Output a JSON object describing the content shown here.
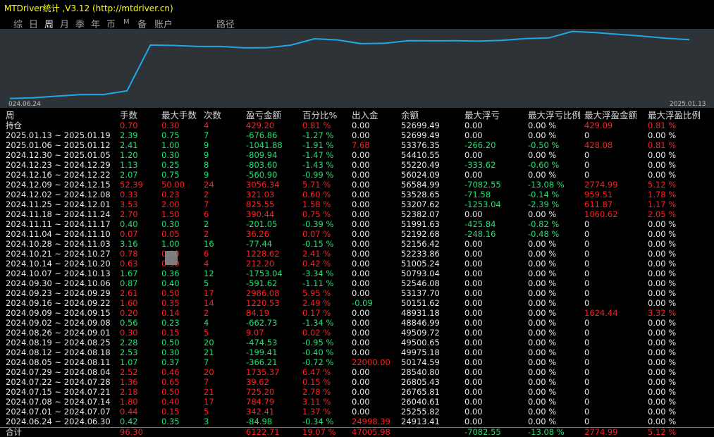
{
  "title": "MTDriver统计 ,V3.12 (http://mtdriver.cn)",
  "tabs": [
    "综",
    "日",
    "周",
    "月",
    "季",
    "年",
    "币",
    "M",
    "备",
    "账户",
    "路径"
  ],
  "active_tab": "周",
  "chart": {
    "x_start_label": "024.06.24",
    "x_end_label": "2025.01.13",
    "line_color": "#1fa8e8",
    "series": [
      24913.41,
      25255.82,
      26040.61,
      26765.81,
      26805.43,
      28540.8,
      50174.59,
      49975.18,
      49500.65,
      49509.72,
      48846.99,
      48931.18,
      50151.62,
      53137.7,
      52546.08,
      50793.04,
      51005.24,
      52233.86,
      52156.42,
      52192.68,
      51991.63,
      52382.07,
      53207.62,
      53528.65,
      56584.99,
      56024.09,
      55220.49,
      54410.55,
      53376.35,
      52699.49
    ]
  },
  "headers": [
    "周",
    "手数",
    "最大手数",
    "次数",
    "盈亏金额",
    "百分比%",
    "出入金",
    "余额",
    "最大浮亏",
    "最大浮亏比例",
    "最大浮盈金额",
    "最大浮盈比例"
  ],
  "rows": [
    [
      "持仓",
      "0.70",
      "0.30",
      "4",
      "429.20",
      "0.81 %",
      "0.00",
      "52699.49",
      "0.00",
      "0.00 %",
      "429.09",
      "0.81 %"
    ],
    [
      "2025.01.13 ~ 2025.01.19",
      "2.39",
      "0.75",
      "7",
      "-676.86",
      "-1.27 %",
      "0.00",
      "52699.49",
      "0.00",
      "0.00 %",
      "0",
      "0.00 %"
    ],
    [
      "2025.01.06 ~ 2025.01.12",
      "2.41",
      "1.00",
      "9",
      "-1041.88",
      "-1.91 %",
      "7.68",
      "53376.35",
      "-266.20",
      "-0.50 %",
      "428.08",
      "0.81 %"
    ],
    [
      "2024.12.30 ~ 2025.01.05",
      "1.20",
      "0.30",
      "9",
      "-809.94",
      "-1.47 %",
      "0.00",
      "54410.55",
      "0.00",
      "0.00 %",
      "0",
      "0.00 %"
    ],
    [
      "2024.12.23 ~ 2024.12.29",
      "1.13",
      "0.25",
      "8",
      "-803.60",
      "-1.43 %",
      "0.00",
      "55220.49",
      "-333.62",
      "-0.60 %",
      "0",
      "0.00 %"
    ],
    [
      "2024.12.16 ~ 2024.12.22",
      "2.07",
      "0.75",
      "9",
      "-560.90",
      "-0.99 %",
      "0.00",
      "56024.09",
      "0.00",
      "0.00 %",
      "0",
      "0.00 %"
    ],
    [
      "2024.12.09 ~ 2024.12.15",
      "52.39",
      "50.00",
      "24",
      "3056.34",
      "5.71 %",
      "0.00",
      "56584.99",
      "-7082.55",
      "-13.08 %",
      "2774.99",
      "5.12 %"
    ],
    [
      "2024.12.02 ~ 2024.12.08",
      "0.33",
      "0.23",
      "2",
      "321.03",
      "0.60 %",
      "0.00",
      "53528.65",
      "-71.58",
      "-0.14 %",
      "959.51",
      "1.78 %"
    ],
    [
      "2024.11.25 ~ 2024.12.01",
      "3.53",
      "2.00",
      "7",
      "825.55",
      "1.58 %",
      "0.00",
      "53207.62",
      "-1253.04",
      "-2.39 %",
      "611.87",
      "1.17 %"
    ],
    [
      "2024.11.18 ~ 2024.11.24",
      "2.70",
      "1.50",
      "6",
      "390.44",
      "0.75 %",
      "0.00",
      "52382.07",
      "0.00",
      "0.00 %",
      "1060.62",
      "2.05 %"
    ],
    [
      "2024.11.11 ~ 2024.11.17",
      "0.40",
      "0.30",
      "2",
      "-201.05",
      "-0.39 %",
      "0.00",
      "51991.63",
      "-425.84",
      "-0.82 %",
      "0",
      "0.00 %"
    ],
    [
      "2024.11.04 ~ 2024.11.10",
      "0.07",
      "0.05",
      "2",
      "36.26",
      "0.07 %",
      "0.00",
      "52192.68",
      "-248.16",
      "-0.48 %",
      "0",
      "0.00 %"
    ],
    [
      "2024.10.28 ~ 2024.11.03",
      "3.16",
      "1.00",
      "16",
      "-77.44",
      "-0.15 %",
      "0.00",
      "52156.42",
      "0.00",
      "0.00 %",
      "0",
      "0.00 %"
    ],
    [
      "2024.10.21 ~ 2024.10.27",
      "0.78",
      "0.30",
      "6",
      "1228.62",
      "2.41 %",
      "0.00",
      "52233.86",
      "0.00",
      "0.00 %",
      "0",
      "0.00 %"
    ],
    [
      "2024.10.14 ~ 2024.10.20",
      "0.63",
      "0.30",
      "4",
      "212.20",
      "0.42 %",
      "0.00",
      "51005.24",
      "0.00",
      "0.00 %",
      "0",
      "0.00 %"
    ],
    [
      "2024.10.07 ~ 2024.10.13",
      "1.67",
      "0.36",
      "12",
      "-1753.04",
      "-3.34 %",
      "0.00",
      "50793.04",
      "0.00",
      "0.00 %",
      "0",
      "0.00 %"
    ],
    [
      "2024.09.30 ~ 2024.10.06",
      "0.87",
      "0.40",
      "5",
      "-591.62",
      "-1.11 %",
      "0.00",
      "52546.08",
      "0.00",
      "0.00 %",
      "0",
      "0.00 %"
    ],
    [
      "2024.09.23 ~ 2024.09.29",
      "2.61",
      "0.50",
      "17",
      "2986.08",
      "5.95 %",
      "0.00",
      "53137.70",
      "0.00",
      "0.00 %",
      "0",
      "0.00 %"
    ],
    [
      "2024.09.16 ~ 2024.09.22",
      "1.60",
      "0.35",
      "14",
      "1220.53",
      "2.49 %",
      "-0.09",
      "50151.62",
      "0.00",
      "0.00 %",
      "0",
      "0.00 %"
    ],
    [
      "2024.09.09 ~ 2024.09.15",
      "0.20",
      "0.14",
      "2",
      "84.19",
      "0.17 %",
      "0.00",
      "48931.18",
      "0.00",
      "0.00 %",
      "1624.44",
      "3.32 %"
    ],
    [
      "2024.09.02 ~ 2024.09.08",
      "0.56",
      "0.23",
      "4",
      "-662.73",
      "-1.34 %",
      "0.00",
      "48846.99",
      "0.00",
      "0.00 %",
      "0",
      "0.00 %"
    ],
    [
      "2024.08.26 ~ 2024.09.01",
      "0.30",
      "0.15",
      "5",
      "9.07",
      "0.02 %",
      "0.00",
      "49509.72",
      "0.00",
      "0.00 %",
      "0",
      "0.00 %"
    ],
    [
      "2024.08.19 ~ 2024.08.25",
      "2.28",
      "0.50",
      "20",
      "-474.53",
      "-0.95 %",
      "0.00",
      "49500.65",
      "0.00",
      "0.00 %",
      "0",
      "0.00 %"
    ],
    [
      "2024.08.12 ~ 2024.08.18",
      "2.53",
      "0.30",
      "21",
      "-199.41",
      "-0.40 %",
      "0.00",
      "49975.18",
      "0.00",
      "0.00 %",
      "0",
      "0.00 %"
    ],
    [
      "2024.08.05 ~ 2024.08.11",
      "1.07",
      "0.37",
      "7",
      "-366.21",
      "-0.72 %",
      "22000.00",
      "50174.59",
      "0.00",
      "0.00 %",
      "0",
      "0.00 %"
    ],
    [
      "2024.07.29 ~ 2024.08.04",
      "2.52",
      "0.46",
      "20",
      "1735.37",
      "6.47 %",
      "0.00",
      "28540.80",
      "0.00",
      "0.00 %",
      "0",
      "0.00 %"
    ],
    [
      "2024.07.22 ~ 2024.07.28",
      "1.36",
      "0.65",
      "7",
      "39.62",
      "0.15 %",
      "0.00",
      "26805.43",
      "0.00",
      "0.00 %",
      "0",
      "0.00 %"
    ],
    [
      "2024.07.15 ~ 2024.07.21",
      "2.18",
      "0.50",
      "21",
      "725.20",
      "2.78 %",
      "0.00",
      "26765.81",
      "0.00",
      "0.00 %",
      "0",
      "0.00 %"
    ],
    [
      "2024.07.08 ~ 2024.07.14",
      "1.80",
      "0.40",
      "17",
      "784.79",
      "3.11 %",
      "0.00",
      "26040.61",
      "0.00",
      "0.00 %",
      "0",
      "0.00 %"
    ],
    [
      "2024.07.01 ~ 2024.07.07",
      "0.44",
      "0.15",
      "5",
      "342.41",
      "1.37 %",
      "0.00",
      "25255.82",
      "0.00",
      "0.00 %",
      "0",
      "0.00 %"
    ],
    [
      "2024.06.24 ~ 2024.06.30",
      "0.42",
      "0.35",
      "3",
      "-84.98",
      "-0.34 %",
      "24998.39",
      "24913.41",
      "0.00",
      "0.00 %",
      "0",
      "0.00 %"
    ]
  ],
  "total": [
    "合计",
    "96.30",
    "",
    "",
    "6122.71",
    "19.07 %",
    "47005.98",
    "",
    "-7082.55",
    "-13.08 %",
    "2774.99",
    "5.12 %"
  ]
}
